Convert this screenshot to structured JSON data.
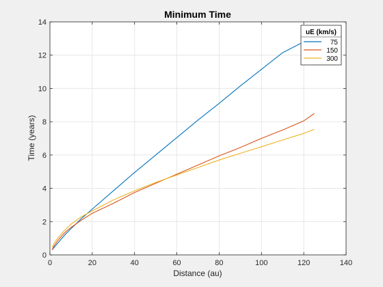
{
  "chart_data": {
    "type": "line",
    "title": "Minimum Time",
    "xlabel": "Distance (au)",
    "ylabel": "Time (years)",
    "xlim": [
      0,
      140
    ],
    "ylim": [
      0,
      14
    ],
    "xticks": [
      0,
      20,
      40,
      60,
      80,
      100,
      120,
      140
    ],
    "yticks": [
      0,
      2,
      4,
      6,
      8,
      10,
      12,
      14
    ],
    "grid": true,
    "legend": {
      "title": "uE (km/s)",
      "placement": "top-right"
    },
    "series": [
      {
        "name": "75",
        "color": "#0072bd",
        "x": [
          1,
          2,
          4,
          6,
          8,
          10,
          12,
          15,
          20,
          30,
          40,
          50,
          60,
          70,
          80,
          90,
          100,
          110,
          120,
          122
        ],
        "y": [
          0.3,
          0.45,
          0.75,
          1.05,
          1.32,
          1.58,
          1.82,
          2.2,
          2.75,
          3.85,
          4.95,
          6.0,
          7.05,
          8.1,
          9.1,
          10.15,
          11.15,
          12.15,
          12.8,
          12.9
        ]
      },
      {
        "name": "150",
        "color": "#d95319",
        "x": [
          1,
          2,
          4,
          6,
          8,
          10,
          15,
          20,
          30,
          40,
          50,
          60,
          70,
          80,
          90,
          100,
          110,
          120,
          125
        ],
        "y": [
          0.3,
          0.55,
          0.9,
          1.2,
          1.45,
          1.65,
          2.1,
          2.5,
          3.1,
          3.75,
          4.3,
          4.85,
          5.4,
          5.95,
          6.45,
          7.0,
          7.5,
          8.05,
          8.5
        ]
      },
      {
        "name": "300",
        "color": "#edb120",
        "x": [
          1,
          2,
          4,
          6,
          8,
          10,
          15,
          20,
          30,
          40,
          50,
          60,
          70,
          80,
          90,
          100,
          110,
          120,
          125
        ],
        "y": [
          0.45,
          0.7,
          1.05,
          1.35,
          1.6,
          1.85,
          2.3,
          2.65,
          3.3,
          3.85,
          4.35,
          4.8,
          5.25,
          5.7,
          6.1,
          6.5,
          6.9,
          7.3,
          7.55
        ]
      }
    ]
  }
}
